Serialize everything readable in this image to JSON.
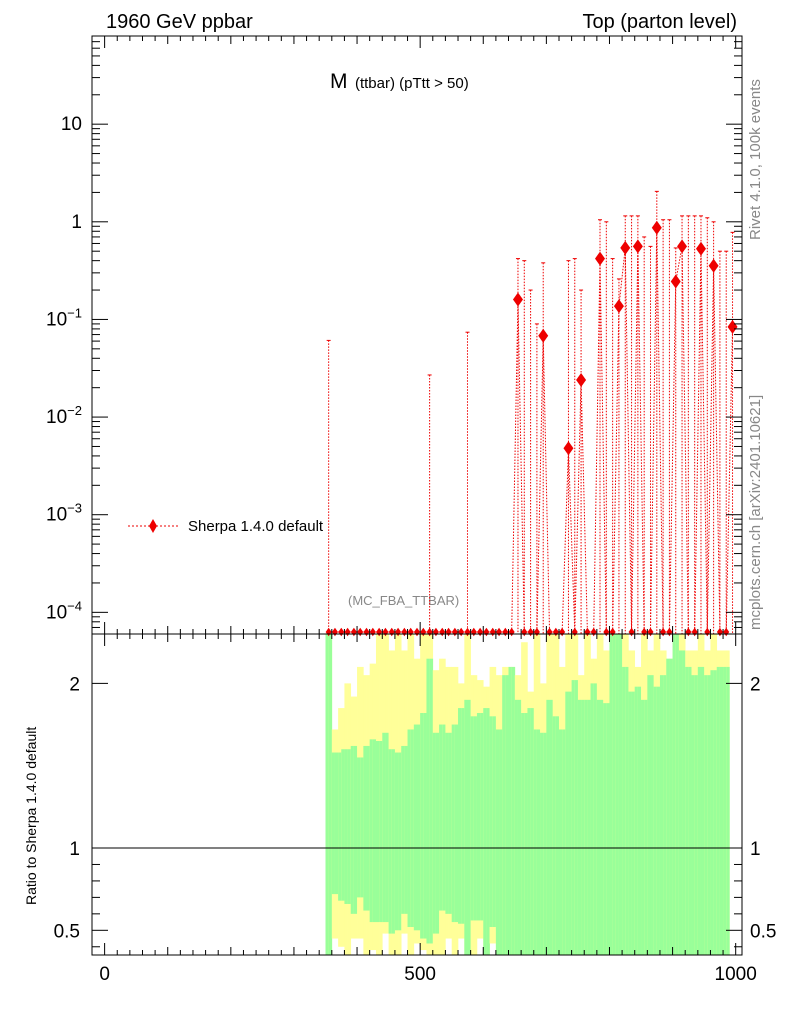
{
  "header": {
    "left": "1960 GeV ppbar",
    "right": "Top (parton level)"
  },
  "title": {
    "main": "M",
    "sub": "(ttbar) (pTtt > 50)"
  },
  "side_labels": {
    "rivet": "Rivet 4.1.0,  100k events",
    "mcplots": "mcplots.cern.ch [arXiv:2401.10621]"
  },
  "analysis_tag": "(MC_FBA_TTBAR)",
  "legend": {
    "label": "Sherpa 1.4.0 default"
  },
  "ratio_ylabel": "Ratio to Sherpa 1.4.0 default",
  "colors": {
    "marker": "#ee0000",
    "band_inner": "#99ff99",
    "band_outer": "#ffff99",
    "axis": "#000000",
    "grey_text": "#888888"
  },
  "chart_data": [
    {
      "type": "scatter",
      "name": "main",
      "yscale": "log",
      "xlim": [
        -20,
        1010
      ],
      "ylim": [
        6e-05,
        80
      ],
      "major_ticks": [
        {
          "value": 0.0001,
          "base": "10",
          "exp": "−4"
        },
        {
          "value": 0.001,
          "base": "10",
          "exp": "−3"
        },
        {
          "value": 0.01,
          "base": "10",
          "exp": "−2"
        },
        {
          "value": 0.1,
          "base": "10",
          "exp": "−1"
        },
        {
          "value": 1,
          "base": "1",
          "exp": ""
        },
        {
          "value": 10,
          "base": "10",
          "exp": ""
        }
      ],
      "series": [
        {
          "name": "Sherpa 1.4.0 default",
          "x": [
            355,
            365,
            375,
            385,
            395,
            405,
            415,
            425,
            435,
            445,
            455,
            465,
            475,
            485,
            495,
            505,
            515,
            525,
            535,
            545,
            555,
            565,
            575,
            585,
            595,
            605,
            615,
            625,
            635,
            645,
            655,
            665,
            675,
            685,
            695,
            705,
            715,
            725,
            735,
            745,
            755,
            765,
            775,
            785,
            795,
            805,
            815,
            825,
            835,
            845,
            855,
            865,
            875,
            885,
            895,
            905,
            915,
            925,
            935,
            945,
            955,
            965,
            975,
            985,
            995
          ],
          "y": [
            0,
            0,
            0,
            0,
            0,
            0,
            0,
            0,
            0,
            0,
            0,
            0,
            0,
            0,
            0,
            0,
            0,
            0,
            0,
            0,
            0,
            0,
            0,
            0,
            0,
            0,
            0,
            0,
            0,
            0,
            0.16,
            0,
            0,
            0,
            0.068,
            0,
            0,
            0,
            0.0048,
            0,
            0.024,
            0,
            0,
            0.42,
            0,
            0,
            0.137,
            0.54,
            0,
            0.56,
            0,
            0,
            0.87,
            0,
            0,
            0.245,
            0.56,
            0,
            0,
            0.53,
            0,
            0.355,
            0,
            0,
            0.084
          ],
          "yerr_up": [
            0.061,
            0,
            0,
            0,
            0,
            0,
            0,
            0,
            0,
            0,
            0,
            0,
            0,
            0,
            0,
            0,
            0.027,
            0,
            0,
            0,
            0,
            0,
            0.074,
            0,
            0,
            0,
            0,
            0,
            0,
            0,
            0.42,
            0.4,
            0.2,
            0.09,
            0.38,
            0,
            0,
            0,
            0.4,
            0.42,
            0.2,
            0,
            0,
            1.05,
            1,
            0.42,
            0.26,
            1.15,
            1.15,
            1.15,
            0.7,
            0.56,
            2.05,
            1.05,
            1.05,
            0.54,
            1.15,
            1.15,
            1.15,
            1.15,
            1.1,
            1,
            0.5,
            0.5,
            0.78
          ]
        }
      ]
    },
    {
      "type": "bar",
      "name": "ratio",
      "xlim": [
        -20,
        1010
      ],
      "ylim": [
        0.35,
        2.3
      ],
      "yticks": [
        0.5,
        1,
        2
      ],
      "ytick_labels": [
        "0.5",
        "1",
        "2"
      ],
      "xticks": [
        0,
        500,
        1000
      ],
      "xtick_labels": [
        "0",
        "500",
        "1000"
      ],
      "reference_line": 1,
      "bin_edges_start": 350,
      "bin_width": 5,
      "green_up": [
        2.3,
        2.3,
        1.58,
        1.58,
        1.58,
        1.6,
        1.6,
        1.6,
        1.62,
        1.62,
        1.55,
        1.55,
        1.62,
        1.62,
        1.66,
        1.66,
        1.65,
        1.65,
        1.7,
        1.7,
        1.6,
        1.6,
        1.58,
        1.58,
        1.62,
        1.62,
        1.72,
        1.72,
        1.75,
        1.75,
        1.82,
        1.82,
        2.15,
        2.15,
        1.7,
        1.7,
        1.75,
        1.75,
        1.7,
        1.7,
        1.75,
        1.75,
        1.85,
        1.85,
        1.9,
        1.9,
        1.8,
        1.8,
        1.82,
        1.82,
        1.85,
        1.85,
        1.8,
        1.8,
        1.72,
        1.72,
        2.05,
        2.05,
        2.1,
        2.1,
        1.9,
        1.9,
        1.82,
        1.82,
        1.85,
        1.85,
        1.72,
        1.72,
        1.7,
        1.7,
        1.9,
        1.9,
        1.8,
        1.8,
        1.72,
        1.72,
        1.95,
        1.95,
        2.02,
        2.02,
        1.9,
        1.9,
        1.9,
        1.9,
        2.0,
        2.0,
        1.9,
        1.9,
        1.88,
        1.88,
        2.3,
        2.3,
        2.3,
        2.3,
        2.1,
        2.1,
        1.95,
        1.95,
        1.98,
        1.98,
        1.9,
        1.9,
        2.05,
        2.05,
        1.98,
        1.98,
        2.05,
        2.05,
        2.15,
        2.15,
        2.3,
        2.3,
        2.2,
        2.2,
        2.1,
        2.1,
        2.05,
        2.05,
        2.1,
        2.1,
        2.05,
        2.05,
        2.08,
        2.08,
        2.1,
        2.1,
        2.1,
        2.1,
        2.3,
        2.3
      ],
      "yellow_up": [
        2.3,
        2.3,
        1.72,
        1.72,
        1.85,
        1.85,
        2.0,
        2.0,
        1.92,
        1.92,
        2.1,
        2.1,
        2.05,
        2.05,
        2.12,
        2.12,
        2.3,
        2.3,
        2.3,
        2.3,
        2.2,
        2.2,
        2.3,
        2.3,
        2.2,
        2.2,
        2.3,
        2.3,
        2.15,
        2.15,
        2.3,
        2.3,
        2.3,
        2.3,
        2.08,
        2.08,
        2.15,
        2.15,
        2.1,
        2.1,
        2.1,
        2.1,
        2.0,
        2.0,
        2.3,
        2.3,
        2.05,
        2.05,
        2.02,
        2.02,
        1.98,
        1.98,
        2.1,
        2.1,
        2.05,
        2.05,
        2.1,
        2.1,
        2.1,
        2.1,
        2.05,
        2.05,
        2.25,
        2.25,
        1.95,
        1.95,
        2.3,
        2.3,
        2.0,
        2.0,
        2.3,
        2.3,
        2.3,
        2.3,
        2.1,
        2.1,
        2.3,
        2.3,
        2.3,
        2.3,
        2.05,
        2.05,
        2.3,
        2.3,
        2.15,
        2.15,
        2.3,
        2.3,
        2.2,
        2.2,
        2.3,
        2.3,
        2.3,
        2.3,
        2.3,
        2.3,
        2.2,
        2.2,
        2.1,
        2.1,
        2.3,
        2.3,
        2.2,
        2.2,
        2.3,
        2.3,
        2.2,
        2.2,
        2.15,
        2.15,
        2.3,
        2.3,
        2.3,
        2.3,
        2.2,
        2.2,
        2.2,
        2.2,
        2.3,
        2.3,
        2.2,
        2.2,
        2.3,
        2.3,
        2.2,
        2.2,
        2.2,
        2.2,
        2.3,
        2.3
      ],
      "green_down": [
        0.35,
        0.35,
        0.72,
        0.72,
        0.68,
        0.68,
        0.66,
        0.66,
        0.6,
        0.6,
        0.7,
        0.7,
        0.62,
        0.62,
        0.55,
        0.55,
        0.55,
        0.55,
        0.55,
        0.55,
        0.48,
        0.48,
        0.5,
        0.5,
        0.6,
        0.6,
        0.52,
        0.52,
        0.5,
        0.5,
        0.45,
        0.45,
        0.42,
        0.42,
        0.48,
        0.48,
        0.62,
        0.62,
        0.6,
        0.6,
        0.55,
        0.55,
        0.54,
        0.54,
        0.35,
        0.35,
        0.56,
        0.56,
        0.56,
        0.56,
        0.35,
        0.35,
        0.52,
        0.52,
        0.35,
        0.35,
        0.35,
        0.35,
        0.35,
        0.35,
        0.35,
        0.35,
        0.35,
        0.35,
        0.35,
        0.35,
        0.35,
        0.35,
        0.35,
        0.35,
        0.35,
        0.35,
        0.35,
        0.35,
        0.35,
        0.35,
        0.35,
        0.35,
        0.35,
        0.35,
        0.35,
        0.35,
        0.35,
        0.35,
        0.35,
        0.35,
        0.35,
        0.35,
        0.35,
        0.35,
        0.35,
        0.35,
        0.35,
        0.35,
        0.35,
        0.35,
        0.35,
        0.35,
        0.35,
        0.35,
        0.35,
        0.35,
        0.35,
        0.35,
        0.35,
        0.35,
        0.35,
        0.35,
        0.35,
        0.35,
        0.35,
        0.35,
        0.35,
        0.35,
        0.35,
        0.35,
        0.35,
        0.35,
        0.35,
        0.35,
        0.35,
        0.35,
        0.35,
        0.35,
        0.35,
        0.35,
        0.35,
        0.35
      ],
      "yellow_down": [
        0.35,
        0.35,
        0.45,
        0.45,
        0.4,
        0.4,
        0.35,
        0.35,
        0.45,
        0.45,
        0.45,
        0.45,
        0.35,
        0.35,
        0.38,
        0.38,
        0.35,
        0.35,
        0.48,
        0.48,
        0.35,
        0.35,
        0.35,
        0.35,
        0.48,
        0.48,
        0.35,
        0.35,
        0.42,
        0.42,
        0.38,
        0.38,
        0.35,
        0.35,
        0.35,
        0.35,
        0.35,
        0.35,
        0.45,
        0.45,
        0.35,
        0.35,
        0.45,
        0.45,
        0.35,
        0.35,
        0.35,
        0.35,
        0.45,
        0.45,
        0.35,
        0.35,
        0.42,
        0.42,
        0.35,
        0.35,
        0.35,
        0.35,
        0.35,
        0.35,
        0.35,
        0.35,
        0.35,
        0.35,
        0.35,
        0.35,
        0.35,
        0.35,
        0.35,
        0.35,
        0.35,
        0.35,
        0.35,
        0.35,
        0.35,
        0.35,
        0.35,
        0.35,
        0.35,
        0.35,
        0.35,
        0.35,
        0.35,
        0.35,
        0.35,
        0.35,
        0.35,
        0.35,
        0.35,
        0.35,
        0.35,
        0.35,
        0.35,
        0.35,
        0.35,
        0.35,
        0.35,
        0.35,
        0.35,
        0.35,
        0.35,
        0.35,
        0.35,
        0.35,
        0.35,
        0.35,
        0.35,
        0.35,
        0.35,
        0.35,
        0.35,
        0.35,
        0.35,
        0.35,
        0.35,
        0.35,
        0.35,
        0.35,
        0.35,
        0.35,
        0.35,
        0.35,
        0.35,
        0.35,
        0.35,
        0.35,
        0.35,
        0.35
      ]
    }
  ]
}
